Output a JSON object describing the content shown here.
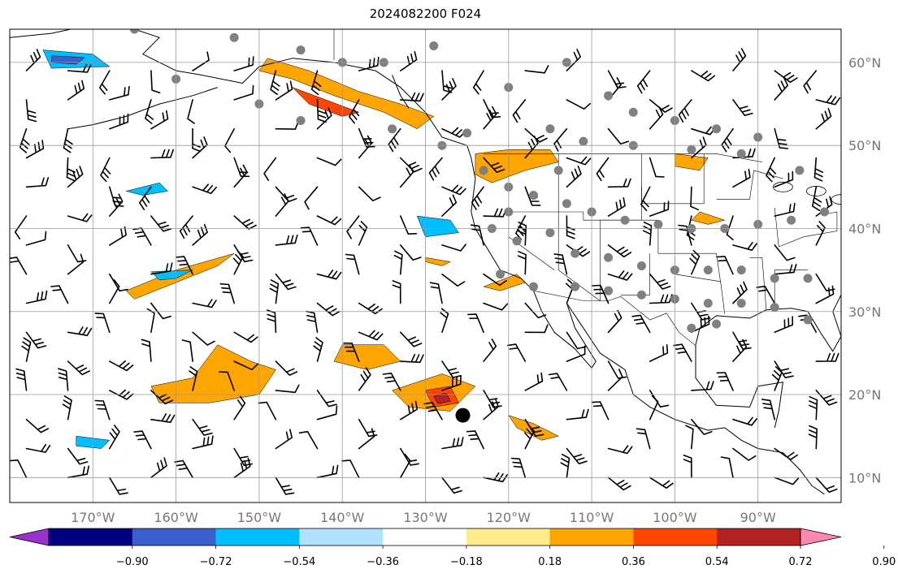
{
  "title": "2024082200 F024",
  "map": {
    "lon_range": [
      -180,
      -80
    ],
    "lat_range": [
      7,
      64
    ],
    "gridlines": true,
    "lon_labels": [
      "170°W",
      "160°W",
      "150°W",
      "140°W",
      "130°W",
      "120°W",
      "110°W",
      "100°W",
      "90°W"
    ],
    "lat_labels": [
      "10°N",
      "20°N",
      "30°N",
      "40°N",
      "50°N",
      "60°N"
    ],
    "lon_ticks": [
      -170,
      -160,
      -150,
      -140,
      -130,
      -120,
      -110,
      -100,
      -90
    ],
    "lat_ticks": [
      10,
      20,
      30,
      40,
      50,
      60
    ],
    "colors": {
      "land_line": "#000000",
      "grid": "#999999",
      "station": "#808080"
    }
  },
  "colorbar": {
    "tick_labels": [
      "−0.90",
      "−0.72",
      "−0.54",
      "−0.36",
      "−0.18",
      "0.18",
      "0.36",
      "0.54",
      "0.72",
      "0.90"
    ],
    "extend": "both",
    "colors": [
      "#9932CC",
      "#000080",
      "#3A5FCD",
      "#00BFFF",
      "#B0E2FF",
      "#FFFFFF",
      "#FFEB8B",
      "#FFA500",
      "#FF4500",
      "#B22222",
      "#FF88B0"
    ]
  },
  "features": {
    "positive_regions": [
      {
        "lon": -145,
        "lat": 54.5,
        "level": 0.54
      },
      {
        "lon": -127.5,
        "lat": 19.5,
        "level": 0.72
      },
      {
        "lon": -158,
        "lat": 35.5,
        "level": 0.54
      },
      {
        "lon": -154,
        "lat": 21.5,
        "level": 0.54
      },
      {
        "lon": -118,
        "lat": 16.5,
        "level": 0.36
      },
      {
        "lon": -121,
        "lat": 47.5,
        "level": 0.54
      },
      {
        "lon": -138,
        "lat": 24,
        "level": 0.36
      }
    ],
    "negative_regions": [
      {
        "lon": -173,
        "lat": 60.5,
        "level": -0.54
      },
      {
        "lon": -129,
        "lat": 40.5,
        "level": -0.54
      },
      {
        "lon": -164,
        "lat": 45,
        "level": -0.54
      },
      {
        "lon": -158,
        "lat": 34.5,
        "level": -0.36
      }
    ],
    "storm_marker": {
      "lon": -125.5,
      "lat": 17.5
    }
  }
}
